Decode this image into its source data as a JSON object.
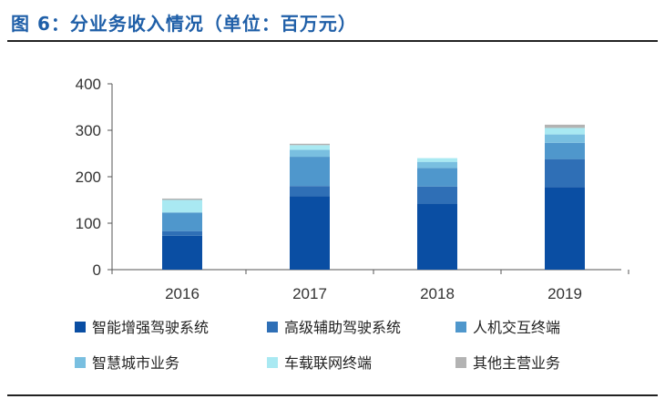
{
  "figure": {
    "title": "图 6：分业务收入情况（单位：百万元）"
  },
  "chart_data": {
    "type": "bar",
    "stacked": true,
    "categories": [
      "2016",
      "2017",
      "2018",
      "2019"
    ],
    "ylim": [
      0,
      400
    ],
    "yticks": [
      0,
      100,
      200,
      300,
      400
    ],
    "grid": false,
    "legend_position": "bottom",
    "series": [
      {
        "name": "智能增强驾驶系统",
        "color": "#0a4ea3",
        "values": [
          73,
          158,
          142,
          178
        ]
      },
      {
        "name": "高级辅助驾驶系统",
        "color": "#2f6fb6",
        "values": [
          10,
          22,
          37,
          60
        ]
      },
      {
        "name": "人机交互终端",
        "color": "#4f97cc",
        "values": [
          40,
          63,
          40,
          35
        ]
      },
      {
        "name": "智慧城市业务",
        "color": "#79bfe0",
        "values": [
          0,
          15,
          13,
          18
        ]
      },
      {
        "name": "车载联网终端",
        "color": "#a9e9f2",
        "values": [
          27,
          10,
          8,
          14
        ]
      },
      {
        "name": "其他主营业务",
        "color": "#b3b3b3",
        "values": [
          3,
          3,
          0,
          7
        ]
      }
    ]
  }
}
